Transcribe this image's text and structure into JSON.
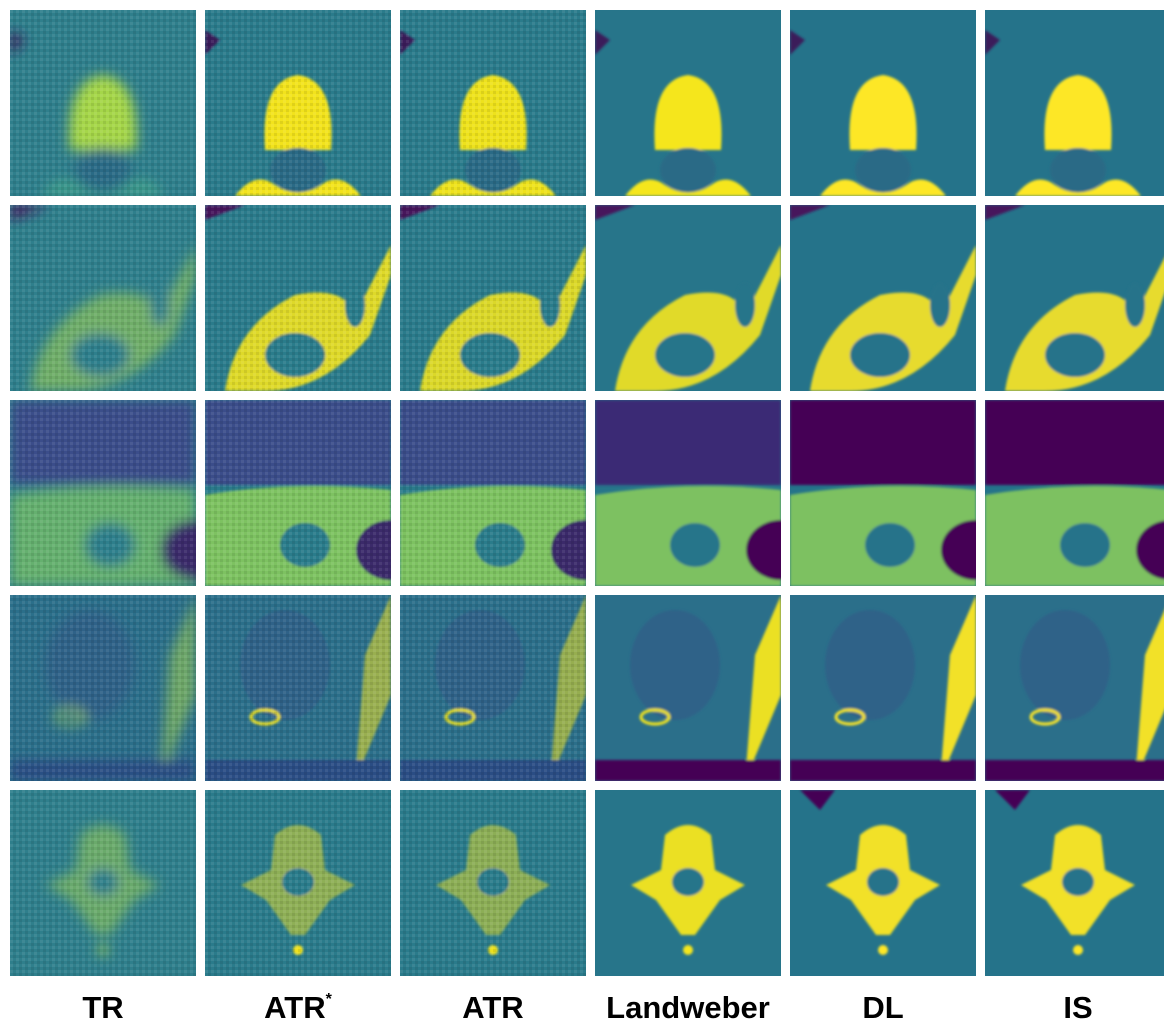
{
  "columns": [
    {
      "label": "TR"
    },
    {
      "label": "ATR",
      "superscript": "*"
    },
    {
      "label": "ATR"
    },
    {
      "label": "Landweber"
    },
    {
      "label": "DL"
    },
    {
      "label": "IS"
    }
  ]
}
